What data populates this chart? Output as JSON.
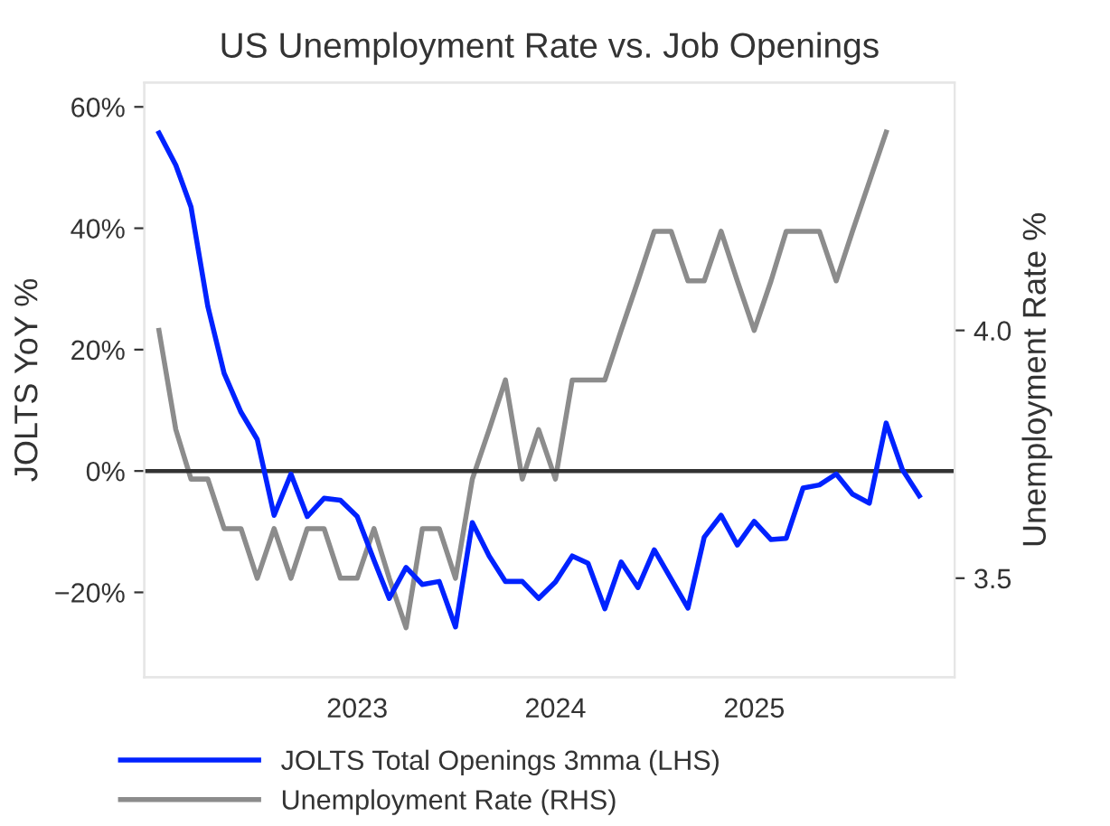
{
  "chart_data": {
    "type": "line",
    "title": "US Unemployment Rate vs. Job Openings",
    "ylabel": "JOLTS YoY %",
    "y2label": "Unemployment Rate %",
    "x": [
      "2022-01",
      "2022-02",
      "2022-03",
      "2022-04",
      "2022-05",
      "2022-06",
      "2022-07",
      "2022-08",
      "2022-09",
      "2022-10",
      "2022-11",
      "2022-12",
      "2023-01",
      "2023-02",
      "2023-03",
      "2023-04",
      "2023-05",
      "2023-06",
      "2023-07",
      "2023-08",
      "2023-09",
      "2023-10",
      "2023-11",
      "2023-12",
      "2024-01",
      "2024-02",
      "2024-03",
      "2024-04",
      "2024-05",
      "2024-06",
      "2024-07",
      "2024-08",
      "2024-09",
      "2024-10",
      "2024-11",
      "2024-12",
      "2025-01",
      "2025-02",
      "2025-03",
      "2025-04",
      "2025-05",
      "2025-06",
      "2025-07",
      "2025-08",
      "2025-09",
      "2025-10",
      "2025-11"
    ],
    "series": [
      {
        "name": "JOLTS Total Openings 3mma (LHS)",
        "color": "#0022ff",
        "values": [
          55.7,
          50.4,
          43.5,
          27.1,
          16.1,
          9.7,
          5.2,
          -7.3,
          -0.5,
          -7.5,
          -4.5,
          -4.8,
          -7.5,
          -14.7,
          -21,
          -15.9,
          -18.7,
          -18.2,
          -25.7,
          -8.5,
          -14.0,
          -18.2,
          -18.2,
          -21,
          -18.3,
          -14.0,
          -15.2,
          -22.7,
          -15.0,
          -19.2,
          -13.0,
          -17.8,
          -22.6,
          -10.9,
          -7.3,
          -12.2,
          -8.3,
          -11.3,
          -11.1,
          -2.8,
          -2.3,
          -0.5,
          -3.8,
          -5.3,
          7.9,
          0.2,
          -4.1
        ]
      },
      {
        "name": "Unemployment Rate (RHS)",
        "color": "#8c8c8c",
        "axis": "y2",
        "values": [
          4.0,
          3.8,
          3.7,
          3.7,
          3.6,
          3.6,
          3.5,
          3.6,
          3.5,
          3.6,
          3.6,
          3.5,
          3.5,
          3.6,
          3.5,
          3.4,
          3.6,
          3.6,
          3.5,
          3.7,
          3.8,
          3.9,
          3.7,
          3.8,
          3.7,
          3.9,
          3.9,
          3.9,
          4.0,
          4.1,
          4.2,
          4.2,
          4.1,
          4.1,
          4.2,
          4.1,
          4.0,
          4.1,
          4.2,
          4.2,
          4.2,
          4.1,
          4.2,
          4.3,
          4.4,
          null,
          null
        ]
      }
    ],
    "xlim": [
      "2021-12-05",
      "2026-01-05"
    ],
    "xticks": [
      {
        "value": "2023-01-01",
        "label": "2023"
      },
      {
        "value": "2024-01-01",
        "label": "2024"
      },
      {
        "value": "2025-01-01",
        "label": "2025"
      }
    ],
    "ylim": [
      -34,
      64
    ],
    "yticks": [
      {
        "value": -20,
        "label": "−20%"
      },
      {
        "value": 0,
        "label": "0%"
      },
      {
        "value": 20,
        "label": "20%"
      },
      {
        "value": 40,
        "label": "40%"
      },
      {
        "value": 60,
        "label": "60%"
      }
    ],
    "y2lim": [
      3.3,
      4.5
    ],
    "y2ticks": [
      {
        "value": 3.5,
        "label": "3.5"
      },
      {
        "value": 4.0,
        "label": "4.0"
      }
    ],
    "ref_lines": [
      {
        "axis": "y",
        "value": 0,
        "color": "#333333"
      }
    ],
    "grid": false,
    "legend": "bottom",
    "line_style": "solid",
    "marker": "none"
  }
}
